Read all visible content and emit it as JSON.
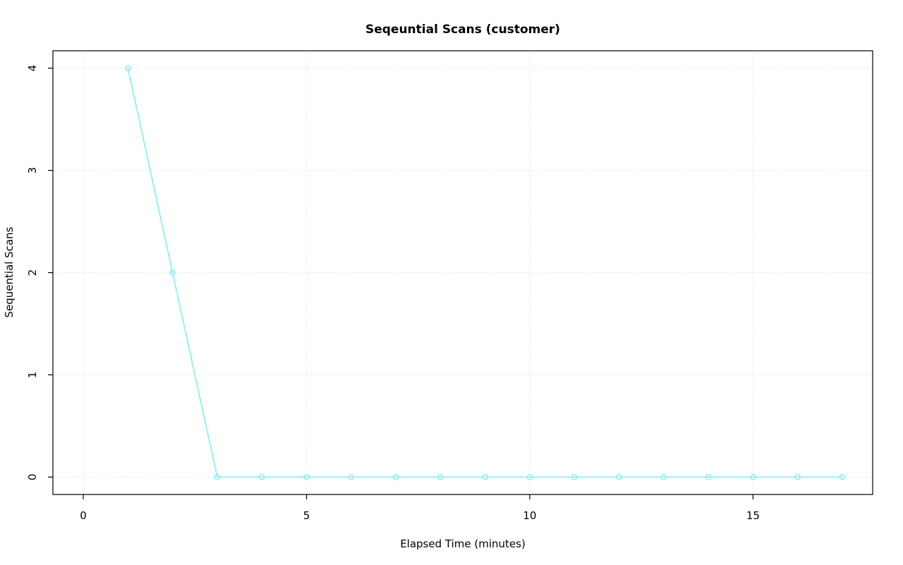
{
  "chart_data": {
    "type": "line",
    "title": "Seqeuntial Scans (customer)",
    "xlabel": "Elapsed Time (minutes)",
    "ylabel": "Sequential Scans",
    "x": [
      1,
      2,
      3,
      4,
      5,
      6,
      7,
      8,
      9,
      10,
      11,
      12,
      13,
      14,
      15,
      16,
      17
    ],
    "values": [
      4,
      2,
      0,
      0,
      0,
      0,
      0,
      0,
      0,
      0,
      0,
      0,
      0,
      0,
      0,
      0,
      0
    ],
    "xticks": [
      0,
      5,
      10,
      15
    ],
    "yticks": [
      0,
      1,
      2,
      3,
      4
    ],
    "xlim": [
      -0.68,
      17.68
    ],
    "ylim": [
      -0.17,
      4.17
    ],
    "grid": true,
    "grid_style": "dotted",
    "legend": "none",
    "line_color": "#80F0F0",
    "marker": "open-circle",
    "marker_color": "#80F0F0",
    "grid_color": "#D3D3D3",
    "axis_color": "#000000",
    "background_color": "#FFFFFF"
  }
}
